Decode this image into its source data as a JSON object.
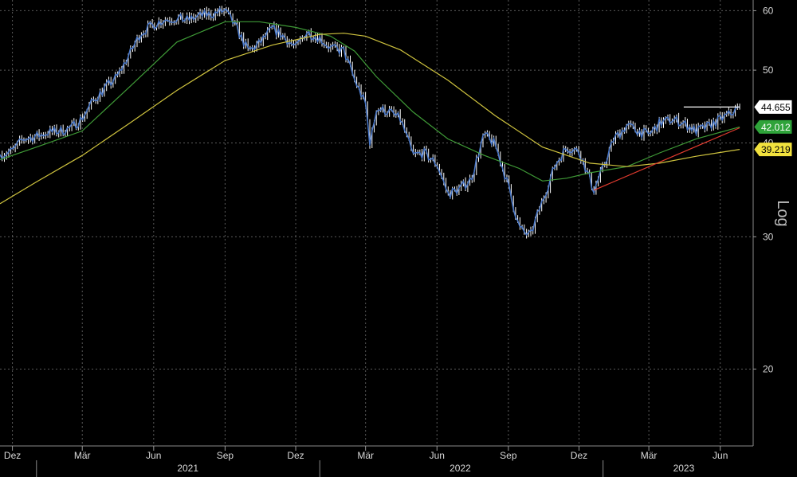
{
  "chart_data": {
    "type": "line",
    "y_scale_label": "Log",
    "ylim": [
      15.8,
      62
    ],
    "yticks": [
      20,
      30,
      40,
      50,
      60
    ],
    "xlim": [
      "2020-11-15",
      "2023-06-28"
    ],
    "month_ticks": [
      {
        "label": "Dez",
        "date": "2020-12-01"
      },
      {
        "label": "Mär",
        "date": "2021-03-01"
      },
      {
        "label": "Jun",
        "date": "2021-06-01"
      },
      {
        "label": "Sep",
        "date": "2021-09-01"
      },
      {
        "label": "Dez",
        "date": "2021-12-01"
      },
      {
        "label": "Mär",
        "date": "2022-03-01"
      },
      {
        "label": "Jun",
        "date": "2022-06-01"
      },
      {
        "label": "Sep",
        "date": "2022-09-01"
      },
      {
        "label": "Dez",
        "date": "2022-12-01"
      },
      {
        "label": "Mär",
        "date": "2023-03-01"
      },
      {
        "label": "Jun",
        "date": "2023-06-01"
      }
    ],
    "year_labels": [
      {
        "label": "2021",
        "date": "2021-07-15"
      },
      {
        "label": "2022",
        "date": "2022-07-01"
      },
      {
        "label": "2023",
        "date": "2023-04-15"
      }
    ],
    "series": [
      {
        "color": "#4a78c8",
        "style": "price",
        "points": [
          [
            "2020-11-15",
            38.6
          ],
          [
            "2020-12-01",
            39.0
          ],
          [
            "2020-12-15",
            40.5
          ],
          [
            "2021-01-01",
            40.8
          ],
          [
            "2021-01-15",
            41.3
          ],
          [
            "2021-02-01",
            41.5
          ],
          [
            "2021-02-15",
            41.9
          ],
          [
            "2021-03-01",
            43.2
          ],
          [
            "2021-03-15",
            45.5
          ],
          [
            "2021-04-01",
            47.5
          ],
          [
            "2021-04-15",
            49.0
          ],
          [
            "2021-05-01",
            52.5
          ],
          [
            "2021-05-15",
            56.0
          ],
          [
            "2021-06-01",
            57.5
          ],
          [
            "2021-06-15",
            58.4
          ],
          [
            "2021-07-01",
            58.6
          ],
          [
            "2021-07-15",
            58.3
          ],
          [
            "2021-08-01",
            59.1
          ],
          [
            "2021-08-15",
            59.4
          ],
          [
            "2021-09-01",
            60.0
          ],
          [
            "2021-09-15",
            57.0
          ],
          [
            "2021-10-01",
            53.0
          ],
          [
            "2021-10-15",
            54.2
          ],
          [
            "2021-11-01",
            56.8
          ],
          [
            "2021-11-15",
            55.5
          ],
          [
            "2021-12-01",
            53.5
          ],
          [
            "2021-12-15",
            56.2
          ],
          [
            "2022-01-01",
            55.2
          ],
          [
            "2022-01-15",
            53.5
          ],
          [
            "2022-02-01",
            53.0
          ],
          [
            "2022-02-15",
            48.5
          ],
          [
            "2022-03-01",
            45.0
          ],
          [
            "2022-03-07",
            39.7
          ],
          [
            "2022-03-15",
            44.5
          ],
          [
            "2022-04-01",
            44.0
          ],
          [
            "2022-04-15",
            43.0
          ],
          [
            "2022-05-01",
            38.5
          ],
          [
            "2022-05-15",
            38.8
          ],
          [
            "2022-06-01",
            37.5
          ],
          [
            "2022-06-15",
            34.2
          ],
          [
            "2022-07-01",
            34.8
          ],
          [
            "2022-07-15",
            35.8
          ],
          [
            "2022-08-01",
            41.0
          ],
          [
            "2022-08-15",
            39.8
          ],
          [
            "2022-09-01",
            35.0
          ],
          [
            "2022-09-15",
            30.8
          ],
          [
            "2022-09-29",
            30.0
          ],
          [
            "2022-10-15",
            33.5
          ],
          [
            "2022-11-01",
            37.5
          ],
          [
            "2022-11-15",
            39.5
          ],
          [
            "2022-12-01",
            39.0
          ],
          [
            "2022-12-20",
            34.6
          ],
          [
            "2023-01-01",
            37.0
          ],
          [
            "2023-01-15",
            40.5
          ],
          [
            "2023-02-01",
            42.2
          ],
          [
            "2023-02-15",
            41.5
          ],
          [
            "2023-03-01",
            41.0
          ],
          [
            "2023-03-15",
            42.5
          ],
          [
            "2023-04-01",
            43.0
          ],
          [
            "2023-04-15",
            42.5
          ],
          [
            "2023-05-01",
            41.5
          ],
          [
            "2023-05-15",
            42.0
          ],
          [
            "2023-06-01",
            43.0
          ],
          [
            "2023-06-15",
            43.8
          ],
          [
            "2023-06-26",
            44.655
          ]
        ]
      },
      {
        "color": "#3f9b37",
        "style": "line",
        "points": [
          [
            "2020-11-15",
            38.0
          ],
          [
            "2021-01-01",
            39.5
          ],
          [
            "2021-03-01",
            41.5
          ],
          [
            "2021-05-01",
            47.5
          ],
          [
            "2021-07-01",
            54.5
          ],
          [
            "2021-09-01",
            58.0
          ],
          [
            "2021-10-15",
            58.0
          ],
          [
            "2021-12-01",
            57.0
          ],
          [
            "2022-01-15",
            55.5
          ],
          [
            "2022-02-15",
            53.0
          ],
          [
            "2022-03-15",
            49.0
          ],
          [
            "2022-05-01",
            44.0
          ],
          [
            "2022-06-15",
            40.5
          ],
          [
            "2022-08-01",
            38.5
          ],
          [
            "2022-09-15",
            37.0
          ],
          [
            "2022-10-15",
            35.6
          ],
          [
            "2022-11-15",
            35.9
          ],
          [
            "2022-12-15",
            36.5
          ],
          [
            "2023-02-01",
            37.2
          ],
          [
            "2023-03-15",
            38.8
          ],
          [
            "2023-05-01",
            40.5
          ],
          [
            "2023-06-26",
            42.012
          ]
        ]
      },
      {
        "color": "#cfc33e",
        "style": "line",
        "points": [
          [
            "2020-11-15",
            33.2
          ],
          [
            "2021-01-01",
            35.5
          ],
          [
            "2021-03-01",
            38.5
          ],
          [
            "2021-05-01",
            42.5
          ],
          [
            "2021-07-01",
            47.0
          ],
          [
            "2021-09-01",
            51.5
          ],
          [
            "2021-11-01",
            54.0
          ],
          [
            "2022-01-01",
            55.8
          ],
          [
            "2022-02-01",
            56.0
          ],
          [
            "2022-03-01",
            55.5
          ],
          [
            "2022-04-15",
            53.2
          ],
          [
            "2022-06-15",
            48.5
          ],
          [
            "2022-08-15",
            43.5
          ],
          [
            "2022-10-15",
            39.5
          ],
          [
            "2022-12-15",
            37.6
          ],
          [
            "2023-02-01",
            37.2
          ],
          [
            "2023-03-15",
            37.6
          ],
          [
            "2023-05-01",
            38.4
          ],
          [
            "2023-06-26",
            39.219
          ]
        ]
      },
      {
        "color": "#e03a2e",
        "style": "line",
        "points": [
          [
            "2022-12-20",
            34.6
          ],
          [
            "2023-06-26",
            41.9
          ]
        ]
      },
      {
        "color": "#ffffff",
        "style": "line",
        "points": [
          [
            "2023-04-15",
            44.655
          ],
          [
            "2023-06-26",
            44.655
          ]
        ]
      }
    ],
    "value_tags": [
      {
        "label": "44.655",
        "value": 44.655,
        "bg": "#ffffff",
        "fg": "#000000"
      },
      {
        "label": "42.012",
        "value": 42.012,
        "bg": "#2fa33a",
        "fg": "#ffffff"
      },
      {
        "label": "39.219",
        "value": 39.219,
        "bg": "#f2e23e",
        "fg": "#000000"
      }
    ],
    "grid": true,
    "legend": "none"
  }
}
